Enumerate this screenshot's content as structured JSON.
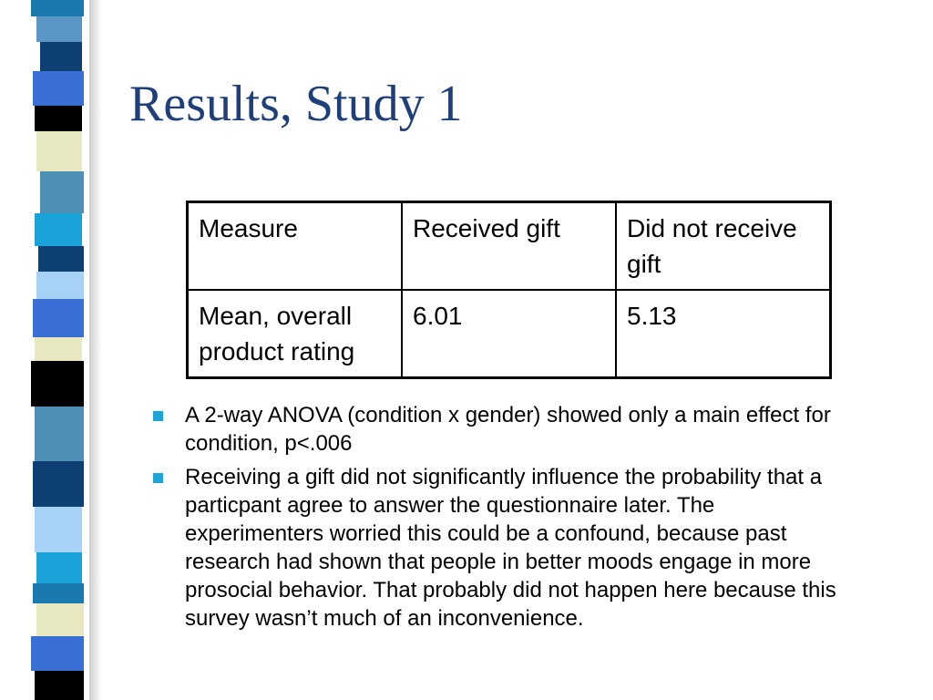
{
  "slide": {
    "title": "Results, Study 1",
    "table": {
      "header": [
        "Measure",
        "Received gift",
        "Did not receive gift"
      ],
      "rows": [
        [
          "Mean, overall product rating",
          "6.01",
          "5.13"
        ]
      ]
    },
    "bullets": [
      "A 2-way ANOVA (condition x gender) showed only a main effect for condition, p<.006",
      "Receiving a gift did not significantly influence the probability that a particpant agree to answer the questionnaire later.  The experimenters worried this could be  a confound, because past research had shown that people in better moods engage in more prosocial behavior.  That probably did not happen here because this survey wasn’t much of an inconvenience."
    ]
  },
  "theme": {
    "title_color": "#1f3f7a",
    "bullet_color": "#1ea3d6",
    "stripe_colors": [
      "#1a7ab0",
      "#5a96c6",
      "#0d3f73",
      "#3a6fd6",
      "#000000",
      "#e7e8c0",
      "#4e8fb5",
      "#1aa3d8",
      "#a6d2f6"
    ]
  }
}
